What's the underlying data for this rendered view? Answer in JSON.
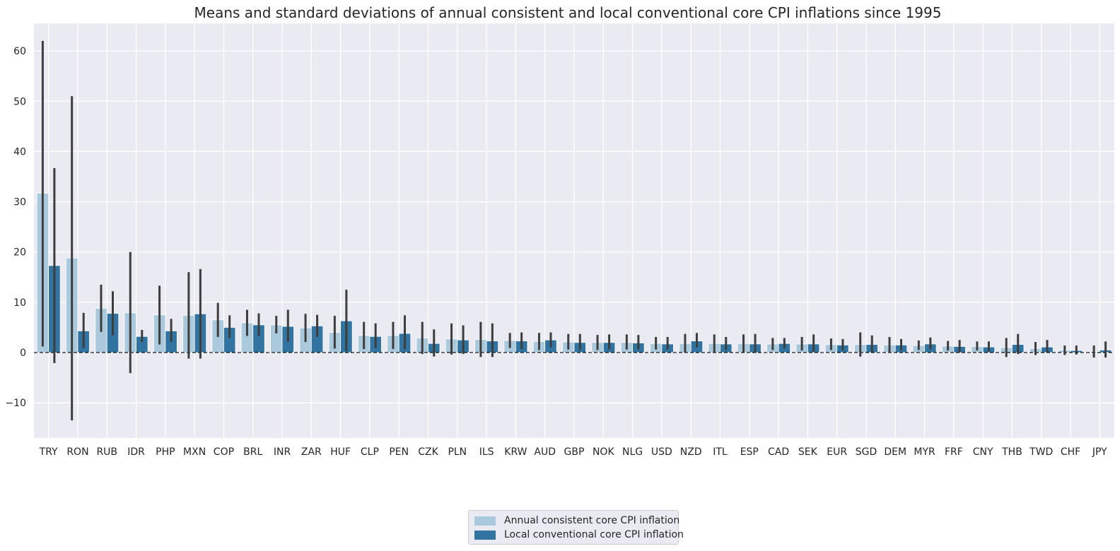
{
  "chart_data": {
    "type": "bar",
    "title": "Means and standard deviations of annual consistent and local conventional core CPI inflations since 1995",
    "xlabel": "",
    "ylabel": "",
    "ylim": [
      -17,
      65.5
    ],
    "yticks": [
      -10,
      0,
      10,
      20,
      30,
      40,
      50,
      60
    ],
    "ytick_labels": [
      "−10",
      "0",
      "10",
      "20",
      "30",
      "40",
      "50",
      "60"
    ],
    "grid": true,
    "legend_position": "bottom-center",
    "zero_line": "dashed",
    "categories": [
      "TRY",
      "RON",
      "RUB",
      "IDR",
      "PHP",
      "MXN",
      "COP",
      "BRL",
      "INR",
      "ZAR",
      "HUF",
      "CLP",
      "PEN",
      "CZK",
      "PLN",
      "ILS",
      "KRW",
      "AUD",
      "GBP",
      "NOK",
      "NLG",
      "USD",
      "NZD",
      "ITL",
      "ESP",
      "CAD",
      "SEK",
      "EUR",
      "SGD",
      "DEM",
      "MYR",
      "FRF",
      "CNY",
      "THB",
      "TWD",
      "CHF",
      "JPY"
    ],
    "series": [
      {
        "name": "Annual consistent core CPI inflation",
        "color": "#abc9dc",
        "values": [
          31.7,
          18.8,
          8.8,
          7.9,
          7.5,
          7.4,
          6.5,
          5.9,
          5.5,
          4.9,
          4.0,
          3.4,
          3.4,
          2.9,
          2.7,
          2.6,
          2.4,
          2.2,
          2.1,
          2.0,
          2.0,
          1.8,
          1.8,
          1.8,
          1.8,
          1.7,
          1.7,
          1.6,
          1.6,
          1.5,
          1.4,
          1.3,
          1.2,
          1.0,
          0.8,
          0.5,
          0.2
        ],
        "error_low": [
          1.2,
          -13.5,
          4.1,
          -4.1,
          1.6,
          -1.2,
          3.1,
          3.3,
          3.8,
          2.1,
          0.8,
          0.7,
          0.7,
          -0.3,
          -0.4,
          -0.9,
          0.9,
          0.5,
          0.6,
          0.5,
          0.6,
          0.6,
          0.0,
          0.1,
          0.1,
          0.5,
          0.4,
          0.5,
          -0.8,
          0.1,
          0.5,
          0.4,
          0.4,
          -0.9,
          -0.5,
          -0.5,
          -1.0
        ],
        "error_high": [
          62.0,
          51.0,
          13.5,
          20.0,
          13.3,
          16.0,
          9.9,
          8.5,
          7.3,
          7.7,
          7.3,
          6.1,
          6.1,
          6.1,
          5.8,
          6.1,
          3.9,
          3.9,
          3.7,
          3.5,
          3.6,
          3.1,
          3.7,
          3.6,
          3.6,
          2.9,
          3.1,
          2.8,
          4.0,
          3.1,
          2.4,
          2.3,
          2.2,
          2.9,
          2.1,
          1.4,
          1.4
        ]
      },
      {
        "name": "Local conventional core CPI inflation",
        "color": "#3274a1",
        "values": [
          17.3,
          4.3,
          7.8,
          3.2,
          4.3,
          7.7,
          5.0,
          5.5,
          5.2,
          5.3,
          6.3,
          3.2,
          3.8,
          1.8,
          2.5,
          2.3,
          2.3,
          2.5,
          2.0,
          2.0,
          1.9,
          1.7,
          2.3,
          1.7,
          1.7,
          1.8,
          1.7,
          1.5,
          1.6,
          1.5,
          1.7,
          1.2,
          1.1,
          1.6,
          1.1,
          0.4,
          0.5
        ],
        "error_low": [
          -2.1,
          0.9,
          3.4,
          2.1,
          2.1,
          -1.2,
          2.9,
          3.3,
          2.1,
          3.1,
          0.3,
          0.9,
          0.6,
          -0.8,
          -0.3,
          -0.9,
          0.7,
          1.0,
          0.5,
          0.6,
          0.6,
          0.6,
          1.0,
          0.5,
          -0.1,
          0.8,
          0.1,
          0.4,
          0.1,
          0.4,
          0.6,
          0.0,
          0.2,
          -0.3,
          0.1,
          -0.4,
          -1.0
        ],
        "error_high": [
          36.7,
          7.9,
          12.2,
          4.5,
          6.7,
          16.6,
          7.4,
          7.8,
          8.5,
          7.5,
          12.5,
          5.8,
          7.4,
          4.6,
          5.4,
          5.8,
          4.0,
          4.0,
          3.7,
          3.6,
          3.5,
          3.1,
          3.9,
          3.1,
          3.7,
          2.9,
          3.6,
          2.7,
          3.4,
          2.7,
          3.0,
          2.5,
          2.2,
          3.7,
          2.5,
          1.4,
          2.2
        ]
      }
    ]
  }
}
